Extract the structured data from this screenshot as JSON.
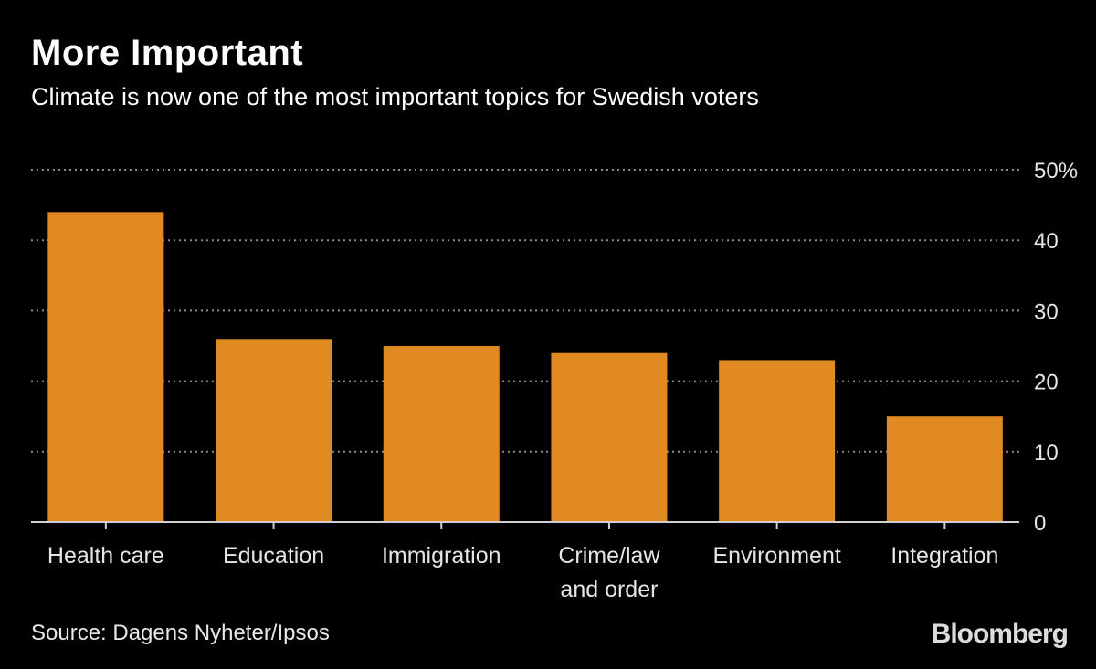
{
  "header": {
    "title": "More Important",
    "subtitle": "Climate is now one of the most important topics for Swedish voters"
  },
  "footer": {
    "source": "Source: Dagens Nyheter/Ipsos",
    "brand": "Bloomberg"
  },
  "colors": {
    "background": "#000000",
    "bar": "#E08A21",
    "gridline": "#8c8c8c",
    "text": "#ffffff"
  },
  "chart_data": {
    "type": "bar",
    "categories": [
      [
        "Health care"
      ],
      [
        "Education"
      ],
      [
        "Immigration"
      ],
      [
        "Crime/law",
        "and order"
      ],
      [
        "Environment"
      ],
      [
        "Integration"
      ]
    ],
    "values": [
      44,
      26,
      25,
      24,
      23,
      15
    ],
    "ylim": [
      0,
      50
    ],
    "yticks": [
      0,
      10,
      20,
      30,
      40,
      50
    ],
    "ytick_labels": [
      "0",
      "10",
      "20",
      "30",
      "40",
      "50%"
    ],
    "grid": true,
    "y_axis_side": "right"
  }
}
